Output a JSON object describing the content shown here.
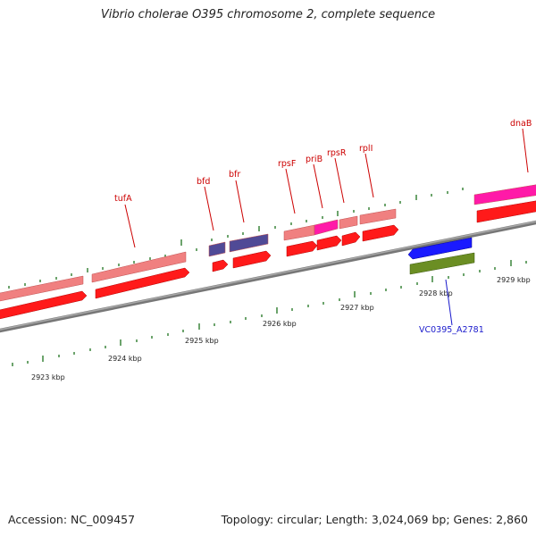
{
  "title": "Vibrio cholerae O395 chromosome 2, complete sequence",
  "footer": {
    "accession": "Accession: NC_009457",
    "summary": "Topology: circular; Length: 3,024,069 bp; Genes: 2,860"
  },
  "colors": {
    "backbone": "#8a8a8a",
    "tick": "#2e7d2e",
    "cds": "#ff1a1a",
    "gene": "#f08080",
    "trna": "#ff1aa8",
    "hypothetical": "#504a96",
    "blue_cds": "#1a1aff",
    "green_cds": "#6b8e23",
    "label_red": "#cc0000",
    "label_blue": "#1a1acc"
  },
  "kbp_labels": [
    "2923 kbp",
    "2924 kbp",
    "2925 kbp",
    "2926 kbp",
    "2927 kbp",
    "2928 kbp",
    "2929 kbp"
  ],
  "gene_labels": [
    {
      "text": "tufA",
      "color": "red"
    },
    {
      "text": "bfd",
      "color": "red"
    },
    {
      "text": "bfr",
      "color": "red"
    },
    {
      "text": "rpsF",
      "color": "red"
    },
    {
      "text": "priB",
      "color": "red"
    },
    {
      "text": "rpsR",
      "color": "red"
    },
    {
      "text": "rplI",
      "color": "red"
    },
    {
      "text": "dnaB",
      "color": "red"
    },
    {
      "text": "VC0395_A2781",
      "color": "blue"
    }
  ]
}
